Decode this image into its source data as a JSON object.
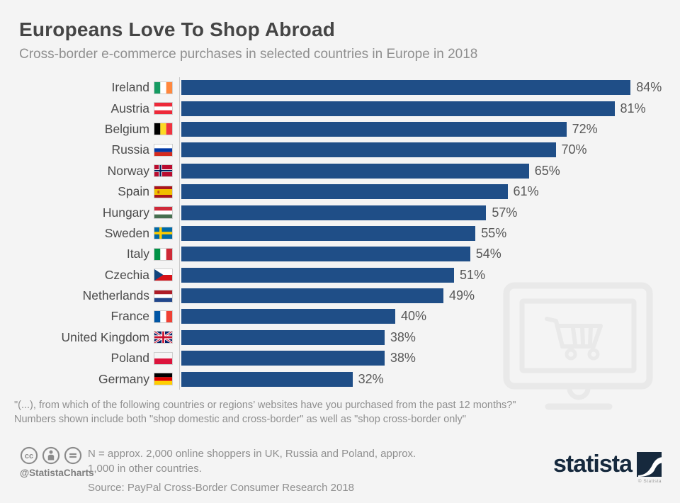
{
  "header": {
    "title": "Europeans Love To Shop Abroad",
    "subtitle": "Cross-border e-commerce purchases in selected countries in Europe in 2018"
  },
  "chart_data": {
    "type": "bar",
    "orientation": "horizontal",
    "unit": "%",
    "bar_color": "#1f4e87",
    "axis": {
      "value_min": 0,
      "value_max_shown": 84,
      "gridlines": false,
      "value_labels": "end-of-bar"
    },
    "categories": [
      "Ireland",
      "Austria",
      "Belgium",
      "Russia",
      "Norway",
      "Spain",
      "Hungary",
      "Sweden",
      "Italy",
      "Czechia",
      "Netherlands",
      "France",
      "United Kingdom",
      "Poland",
      "Germany"
    ],
    "values": [
      84,
      81,
      72,
      70,
      65,
      61,
      57,
      55,
      54,
      51,
      49,
      40,
      38,
      38,
      32
    ],
    "rows": [
      {
        "country": "Ireland",
        "value": 84,
        "display": "84%"
      },
      {
        "country": "Austria",
        "value": 81,
        "display": "81%"
      },
      {
        "country": "Belgium",
        "value": 72,
        "display": "72%"
      },
      {
        "country": "Russia",
        "value": 70,
        "display": "70%"
      },
      {
        "country": "Norway",
        "value": 65,
        "display": "65%"
      },
      {
        "country": "Spain",
        "value": 61,
        "display": "61%"
      },
      {
        "country": "Hungary",
        "value": 57,
        "display": "57%"
      },
      {
        "country": "Sweden",
        "value": 55,
        "display": "55%"
      },
      {
        "country": "Italy",
        "value": 54,
        "display": "54%"
      },
      {
        "country": "Czechia",
        "value": 51,
        "display": "51%"
      },
      {
        "country": "Netherlands",
        "value": 49,
        "display": "49%"
      },
      {
        "country": "France",
        "value": 40,
        "display": "40%"
      },
      {
        "country": "United Kingdom",
        "value": 38,
        "display": "38%"
      },
      {
        "country": "Poland",
        "value": 38,
        "display": "38%"
      },
      {
        "country": "Germany",
        "value": 32,
        "display": "32%"
      }
    ]
  },
  "footnotes": {
    "line1": "\"(...), from which of the following countries or regions’ websites have you purchased from the past 12 months?\"",
    "line2": "Numbers shown include both \"shop domestic and cross-border\" as well as \"shop cross-border only\"",
    "sample_line1": "N = approx. 2,000 online shoppers in UK, Russia and Poland, approx.",
    "sample_line2": "1,000 in other countries.",
    "source": "Source: PayPal Cross-Border Consumer Research 2018"
  },
  "footer": {
    "cc_handle": "@StatistaCharts",
    "brand": "statista",
    "brand_caption": "© Statista"
  }
}
